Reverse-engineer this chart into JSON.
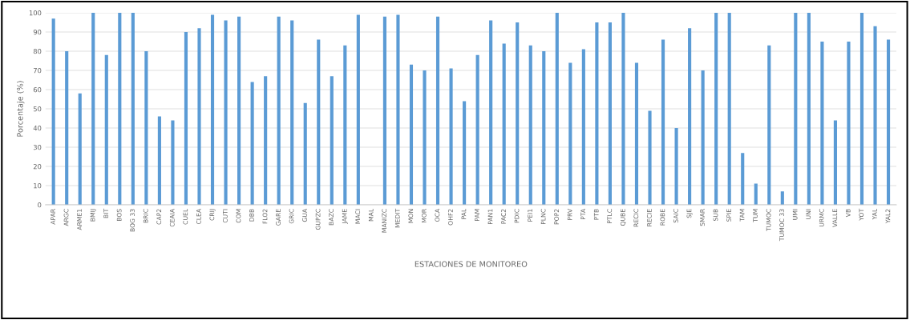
{
  "chart_data": {
    "type": "bar",
    "xlabel": "ESTACIONES DE MONITOREO",
    "ylabel": "Porcentaje (%)",
    "categories": [
      "APAR",
      "ARGC",
      "ARME1",
      "BMIJ",
      "BIT",
      "BOS",
      "BOG 33",
      "BRIC",
      "CAP2",
      "CEAIA",
      "CUEL",
      "CLEA",
      "CRIJ",
      "CUTI",
      "COM",
      "DBB",
      "FLO2",
      "GARE",
      "GRIC",
      "GUA",
      "GUPZC",
      "BAZC",
      "JAME",
      "MACI",
      "MAL",
      "MANIZC",
      "MEDIT",
      "MON",
      "MOR",
      "OCA",
      "OHF2",
      "PAL",
      "PAM",
      "PAN1",
      "PAC2",
      "PDIC",
      "PEI1",
      "PLNC",
      "POP2",
      "PRV",
      "PTA",
      "PTB",
      "PTLC",
      "QUBE",
      "RECIC",
      "RECIE",
      "ROBE",
      "SAIC",
      "SJE",
      "SMAR",
      "SUB",
      "SPIE",
      "TAM",
      "TUM",
      "TUMOC",
      "TUMOC 33",
      "UMI",
      "UNI",
      "URMC",
      "VALLE",
      "VB",
      "YOT",
      "YAL",
      "YAL2"
    ],
    "values": [
      97,
      80,
      58,
      100,
      78,
      100,
      100,
      80,
      46,
      44,
      90,
      92,
      99,
      96,
      98,
      64,
      67,
      98,
      96,
      53,
      86,
      67,
      83,
      99,
      0,
      98,
      99,
      73,
      70,
      98,
      71,
      54,
      78,
      96,
      84,
      95,
      83,
      80,
      100,
      74,
      81,
      95,
      95,
      100,
      74,
      49,
      86,
      40,
      92,
      70,
      100,
      100,
      27,
      11,
      83,
      7,
      100,
      100,
      85,
      44,
      85,
      100,
      93,
      86
    ],
    "color": "#5b9bd5",
    "ylim": [
      0,
      100
    ],
    "yticks": [
      0,
      10,
      20,
      30,
      40,
      50,
      60,
      70,
      80,
      90,
      100
    ],
    "grid": "y"
  }
}
